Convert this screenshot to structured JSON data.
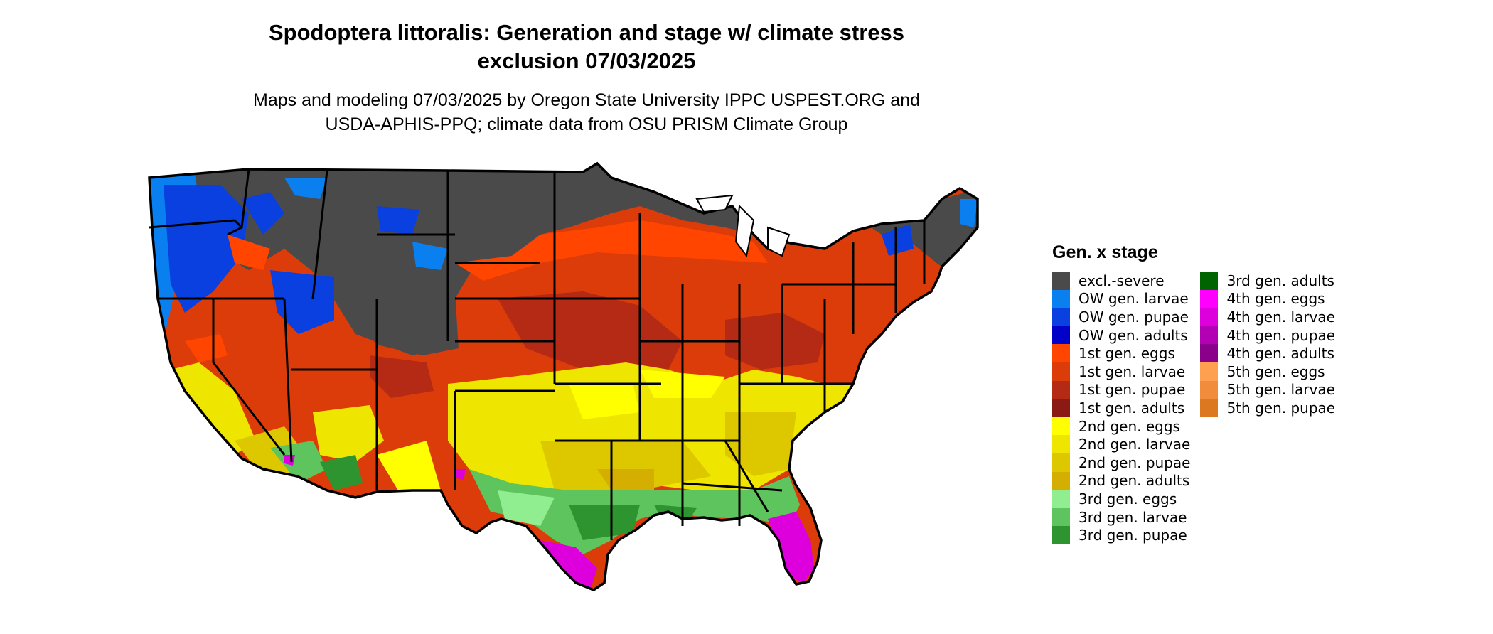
{
  "header": {
    "title_line1": "Spodoptera littoralis: Generation and stage w/ climate stress",
    "title_line2": "exclusion 07/03/2025",
    "subtitle_line1": "Maps and modeling 07/03/2025 by Oregon State University IPPC USPEST.ORG and",
    "subtitle_line2": "USDA-APHIS-PPQ; climate data from OSU PRISM Climate Group"
  },
  "legend": {
    "title": "Gen. x stage",
    "columns": [
      [
        {
          "label": "excl.-severe",
          "color": "#4a4a4a"
        },
        {
          "label": "OW gen. larvae",
          "color": "#0a7ff0"
        },
        {
          "label": "OW gen. pupae",
          "color": "#0a3fe0"
        },
        {
          "label": "OW gen. adults",
          "color": "#0000c8"
        },
        {
          "label": "1st gen. eggs",
          "color": "#ff4500"
        },
        {
          "label": "1st gen. larvae",
          "color": "#dc3c0a"
        },
        {
          "label": "1st gen. pupae",
          "color": "#b42a14"
        },
        {
          "label": "1st gen. adults",
          "color": "#8c1a14"
        },
        {
          "label": "2nd gen. eggs",
          "color": "#ffff00"
        },
        {
          "label": "2nd gen. larvae",
          "color": "#eee600"
        },
        {
          "label": "2nd gen. pupae",
          "color": "#ddc800"
        },
        {
          "label": "2nd gen. adults",
          "color": "#d4ae00"
        },
        {
          "label": "3rd gen. eggs",
          "color": "#90ee90"
        },
        {
          "label": "3rd gen. larvae",
          "color": "#5ec45e"
        },
        {
          "label": "3rd gen. pupae",
          "color": "#2e9430"
        }
      ],
      [
        {
          "label": "3rd gen. adults",
          "color": "#006400"
        },
        {
          "label": "4th gen. eggs",
          "color": "#ff00ff"
        },
        {
          "label": "4th gen. larvae",
          "color": "#dd00dd"
        },
        {
          "label": "4th gen. pupae",
          "color": "#b400b4"
        },
        {
          "label": "4th gen. adults",
          "color": "#8b008b"
        },
        {
          "label": "5th gen. eggs",
          "color": "#ffa050"
        },
        {
          "label": "5th gen. larvae",
          "color": "#f08c3c"
        },
        {
          "label": "5th gen. pupae",
          "color": "#dc7820"
        }
      ]
    ]
  }
}
